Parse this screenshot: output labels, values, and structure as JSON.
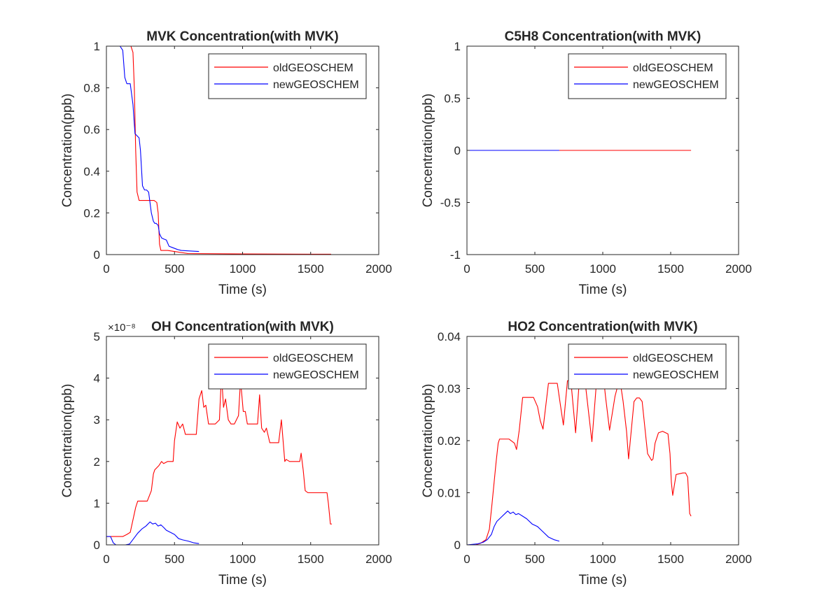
{
  "figure": {
    "background": "#ffffff",
    "axis_color": "#262626"
  },
  "chart_data": [
    {
      "id": "mvk",
      "type": "line",
      "title": "MVK Concentration(with MVK)",
      "xlabel": "Time (s)",
      "ylabel": "Concentration(ppb)",
      "xlim": [
        0,
        2000
      ],
      "ylim": [
        0,
        1
      ],
      "xticks": [
        0,
        500,
        1000,
        1500,
        2000
      ],
      "xtick_labels": [
        "0",
        "500",
        "1000",
        "1500",
        "2000"
      ],
      "yticks": [
        0,
        0.2,
        0.4,
        0.6,
        0.8,
        1
      ],
      "ytick_labels": [
        "0",
        "0.2",
        "0.4",
        "0.6",
        "0.8",
        "1"
      ],
      "y_exponent": "",
      "grid": false,
      "legend_position": "top-right",
      "series": [
        {
          "name": "oldGEOSCHEM",
          "color": "#ff0000",
          "x": [
            0,
            100,
            180,
            195,
            205,
            215,
            225,
            240,
            300,
            350,
            370,
            380,
            390,
            400,
            450,
            500,
            600,
            1000,
            1500,
            1650
          ],
          "y": [
            1,
            1,
            1,
            0.97,
            0.8,
            0.5,
            0.3,
            0.26,
            0.26,
            0.26,
            0.25,
            0.2,
            0.05,
            0.02,
            0.02,
            0.015,
            0.005,
            0.003,
            0.002,
            0.002
          ]
        },
        {
          "name": "newGEOSCHEM",
          "color": "#0000ff",
          "x": [
            0,
            100,
            120,
            135,
            150,
            175,
            195,
            210,
            225,
            240,
            250,
            265,
            280,
            295,
            310,
            330,
            345,
            355,
            365,
            380,
            390,
            405,
            420,
            440,
            460,
            480,
            500,
            520,
            550,
            600,
            680
          ],
          "y": [
            1,
            1,
            0.98,
            0.85,
            0.82,
            0.82,
            0.72,
            0.58,
            0.57,
            0.56,
            0.5,
            0.33,
            0.31,
            0.31,
            0.3,
            0.2,
            0.16,
            0.15,
            0.15,
            0.14,
            0.1,
            0.08,
            0.075,
            0.07,
            0.04,
            0.035,
            0.03,
            0.025,
            0.02,
            0.018,
            0.015
          ]
        }
      ]
    },
    {
      "id": "c5h8",
      "type": "line",
      "title": "C5H8 Concentration(with MVK)",
      "xlabel": "Time (s)",
      "ylabel": "Concentration(ppb)",
      "xlim": [
        0,
        2000
      ],
      "ylim": [
        -1,
        1
      ],
      "xticks": [
        0,
        500,
        1000,
        1500,
        2000
      ],
      "xtick_labels": [
        "0",
        "500",
        "1000",
        "1500",
        "2000"
      ],
      "yticks": [
        -1,
        -0.5,
        0,
        0.5,
        1
      ],
      "ytick_labels": [
        "-1",
        "-0.5",
        "0",
        "0.5",
        "1"
      ],
      "y_exponent": "",
      "grid": false,
      "legend_position": "top-right",
      "series": [
        {
          "name": "oldGEOSCHEM",
          "color": "#ff0000",
          "x": [
            0,
            1650
          ],
          "y": [
            0,
            0
          ]
        },
        {
          "name": "newGEOSCHEM",
          "color": "#0000ff",
          "x": [
            0,
            680
          ],
          "y": [
            0,
            0
          ]
        }
      ]
    },
    {
      "id": "oh",
      "type": "line",
      "title": "OH Concentration(with MVK)",
      "xlabel": "Time (s)",
      "ylabel": "Concentration(ppb)",
      "xlim": [
        0,
        2000
      ],
      "ylim": [
        0,
        5
      ],
      "xticks": [
        0,
        500,
        1000,
        1500,
        2000
      ],
      "xtick_labels": [
        "0",
        "500",
        "1000",
        "1500",
        "2000"
      ],
      "yticks": [
        0,
        1,
        2,
        3,
        4,
        5
      ],
      "ytick_labels": [
        "0",
        "1",
        "2",
        "3",
        "4",
        "5"
      ],
      "y_exponent": "×10⁻⁸",
      "grid": false,
      "legend_position": "top-right",
      "series": [
        {
          "name": "oldGEOSCHEM",
          "color": "#ff0000",
          "x": [
            0,
            80,
            120,
            150,
            175,
            195,
            215,
            230,
            250,
            300,
            330,
            345,
            355,
            370,
            385,
            395,
            405,
            420,
            450,
            490,
            500,
            520,
            540,
            560,
            580,
            620,
            660,
            680,
            700,
            715,
            730,
            750,
            800,
            830,
            845,
            860,
            875,
            895,
            915,
            940,
            970,
            985,
            1005,
            1020,
            1035,
            1070,
            1110,
            1125,
            1140,
            1160,
            1175,
            1200,
            1230,
            1265,
            1285,
            1300,
            1310,
            1320,
            1345,
            1380,
            1420,
            1430,
            1445,
            1460,
            1480,
            1600,
            1620,
            1630,
            1645,
            1655
          ],
          "y": [
            0.2,
            0.2,
            0.2,
            0.25,
            0.3,
            0.6,
            0.9,
            1.05,
            1.05,
            1.05,
            1.3,
            1.7,
            1.8,
            1.85,
            1.9,
            1.95,
            2.0,
            1.95,
            2.0,
            2.0,
            2.5,
            2.95,
            2.8,
            2.9,
            2.65,
            2.65,
            2.65,
            3.5,
            3.7,
            3.3,
            3.35,
            2.9,
            2.9,
            3.0,
            4.1,
            3.3,
            3.5,
            3.0,
            2.9,
            2.9,
            3.1,
            3.95,
            3.2,
            3.2,
            2.9,
            2.9,
            2.9,
            3.6,
            2.8,
            2.7,
            2.8,
            2.45,
            2.45,
            2.45,
            3.0,
            2.4,
            2.0,
            2.05,
            2.0,
            2.0,
            2.0,
            2.2,
            1.8,
            1.3,
            1.25,
            1.25,
            1.25,
            1.0,
            0.5,
            0.5
          ]
        },
        {
          "name": "newGEOSCHEM",
          "color": "#0000ff",
          "x": [
            0,
            30,
            50,
            70,
            100,
            140,
            170,
            200,
            230,
            260,
            290,
            320,
            340,
            360,
            380,
            400,
            420,
            440,
            470,
            500,
            530,
            560,
            600,
            640,
            680
          ],
          "y": [
            0.2,
            0.2,
            0.05,
            0.0,
            0.0,
            0.0,
            0.02,
            0.15,
            0.28,
            0.38,
            0.45,
            0.55,
            0.5,
            0.52,
            0.45,
            0.48,
            0.42,
            0.35,
            0.3,
            0.25,
            0.15,
            0.12,
            0.09,
            0.05,
            0.03
          ]
        }
      ]
    },
    {
      "id": "ho2",
      "type": "line",
      "title": "HO2 Concentration(with MVK)",
      "xlabel": "Time (s)",
      "ylabel": "Concentration(ppb)",
      "xlim": [
        0,
        2000
      ],
      "ylim": [
        0,
        0.04
      ],
      "xticks": [
        0,
        500,
        1000,
        1500,
        2000
      ],
      "xtick_labels": [
        "0",
        "500",
        "1000",
        "1500",
        "2000"
      ],
      "yticks": [
        0,
        0.01,
        0.02,
        0.03,
        0.04
      ],
      "ytick_labels": [
        "0",
        "0.01",
        "0.02",
        "0.03",
        "0.04"
      ],
      "y_exponent": "",
      "grid": false,
      "legend_position": "top-right",
      "series": [
        {
          "name": "oldGEOSCHEM",
          "color": "#ff0000",
          "x": [
            0,
            60,
            100,
            140,
            165,
            185,
            200,
            215,
            230,
            240,
            310,
            350,
            365,
            385,
            410,
            490,
            520,
            540,
            560,
            600,
            640,
            665,
            690,
            710,
            740,
            765,
            800,
            830,
            845,
            860,
            880,
            920,
            950,
            970,
            985,
            1000,
            1020,
            1050,
            1090,
            1110,
            1130,
            1150,
            1175,
            1190,
            1230,
            1250,
            1270,
            1290,
            1330,
            1360,
            1370,
            1385,
            1410,
            1440,
            1480,
            1495,
            1505,
            1515,
            1540,
            1590,
            1610,
            1625,
            1640,
            1650
          ],
          "y": [
            0,
            0,
            0.0003,
            0.001,
            0.003,
            0.008,
            0.012,
            0.016,
            0.0195,
            0.0203,
            0.0203,
            0.0195,
            0.0183,
            0.022,
            0.0283,
            0.0283,
            0.0265,
            0.0238,
            0.0222,
            0.031,
            0.031,
            0.031,
            0.0265,
            0.023,
            0.0315,
            0.0315,
            0.0215,
            0.0325,
            0.0335,
            0.0335,
            0.029,
            0.0198,
            0.03,
            0.0335,
            0.0335,
            0.0335,
            0.0285,
            0.022,
            0.0285,
            0.0305,
            0.031,
            0.0275,
            0.0218,
            0.0165,
            0.0275,
            0.0282,
            0.0282,
            0.0275,
            0.0175,
            0.0162,
            0.0165,
            0.0195,
            0.0215,
            0.0218,
            0.0213,
            0.0175,
            0.012,
            0.0095,
            0.0135,
            0.0138,
            0.0138,
            0.013,
            0.006,
            0.0055
          ]
        },
        {
          "name": "newGEOSCHEM",
          "color": "#0000ff",
          "x": [
            0,
            40,
            80,
            120,
            150,
            180,
            200,
            220,
            240,
            260,
            280,
            300,
            320,
            340,
            360,
            380,
            410,
            440,
            480,
            520,
            560,
            600,
            640,
            680
          ],
          "y": [
            0,
            0.0001,
            0.0002,
            0.0005,
            0.001,
            0.002,
            0.0035,
            0.0045,
            0.005,
            0.0055,
            0.006,
            0.0065,
            0.006,
            0.0063,
            0.0058,
            0.006,
            0.0055,
            0.005,
            0.004,
            0.0035,
            0.0025,
            0.0015,
            0.001,
            0.0007
          ]
        }
      ]
    }
  ]
}
